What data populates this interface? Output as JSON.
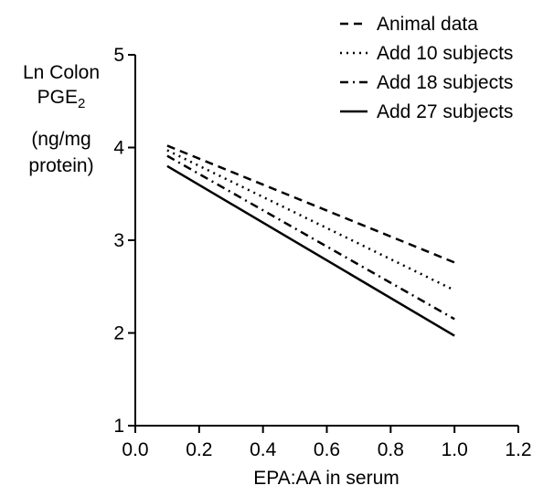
{
  "chart_data": {
    "type": "line",
    "xlabel": "EPA:AA in serum",
    "ylabel_lines": [
      "Ln Colon",
      "PGE",
      "(ng/mg",
      "protein)"
    ],
    "ylabel_subscript": "2",
    "xlim": [
      0.0,
      1.2
    ],
    "ylim": [
      1,
      5
    ],
    "x_ticks": [
      "0.0",
      "0.2",
      "0.4",
      "0.6",
      "0.8",
      "1.0",
      "1.2"
    ],
    "y_ticks": [
      "1",
      "2",
      "3",
      "4",
      "5"
    ],
    "grid": false,
    "legend_position": "top-right",
    "series": [
      {
        "name": "Animal data",
        "style": "dashed",
        "x": [
          0.1,
          1.0
        ],
        "y": [
          4.02,
          2.76
        ]
      },
      {
        "name": "Add 10 subjects",
        "style": "dotted",
        "x": [
          0.1,
          1.0
        ],
        "y": [
          3.97,
          2.46
        ]
      },
      {
        "name": "Add 18 subjects",
        "style": "dash-dot",
        "x": [
          0.1,
          1.0
        ],
        "y": [
          3.91,
          2.15
        ]
      },
      {
        "name": "Add 27 subjects",
        "style": "solid",
        "x": [
          0.1,
          1.0
        ],
        "y": [
          3.8,
          1.97
        ]
      }
    ]
  }
}
